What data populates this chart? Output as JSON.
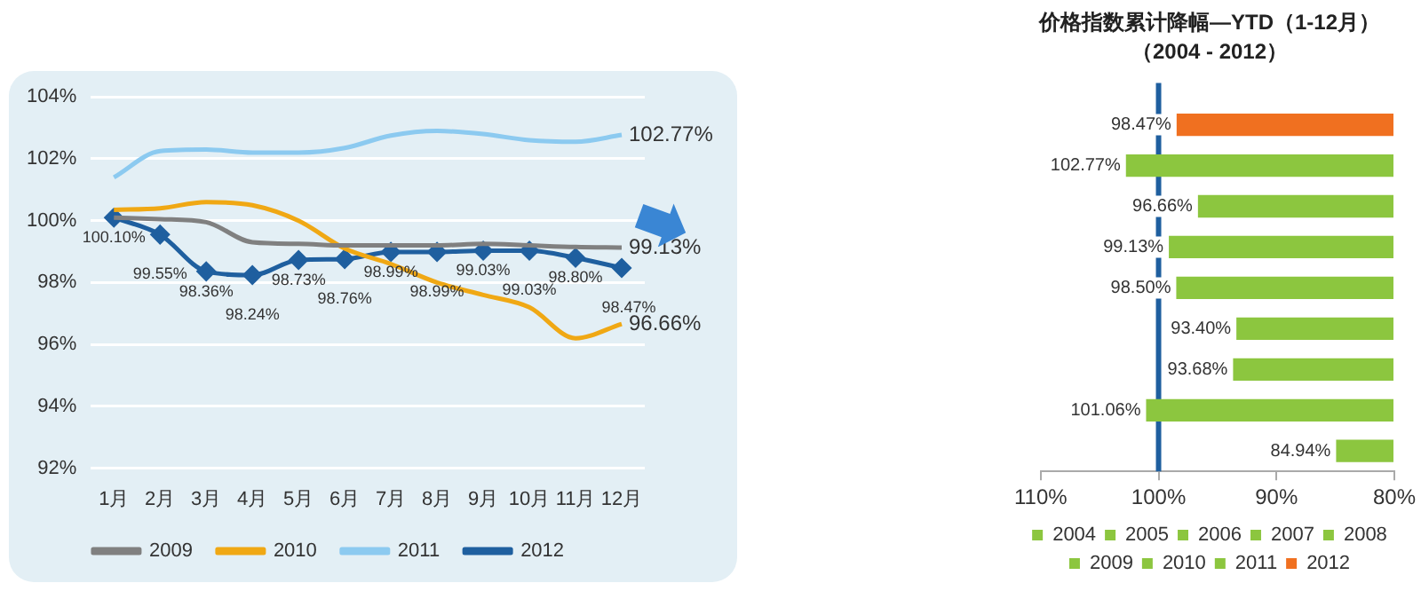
{
  "chart_data": [
    {
      "type": "line",
      "categories": [
        "1月",
        "2月",
        "3月",
        "4月",
        "5月",
        "6月",
        "7月",
        "8月",
        "9月",
        "10月",
        "11月",
        "12月"
      ],
      "ylim": [
        92,
        104
      ],
      "yticks": [
        {
          "value": 92,
          "label": "92%"
        },
        {
          "value": 94,
          "label": "94%"
        },
        {
          "value": 96,
          "label": "96%"
        },
        {
          "value": 98,
          "label": "98%"
        },
        {
          "value": 100,
          "label": "100%"
        },
        {
          "value": 102,
          "label": "102%"
        },
        {
          "value": 104,
          "label": "104%"
        }
      ],
      "grid": "y",
      "legend": "bottom",
      "series": [
        {
          "name": "2009",
          "color": "#808080",
          "values": [
            100.1,
            100.05,
            99.95,
            99.3,
            99.25,
            99.2,
            99.2,
            99.2,
            99.25,
            99.2,
            99.15,
            99.13
          ],
          "value_labels": [
            null,
            null,
            null,
            null,
            null,
            null,
            null,
            null,
            null,
            null,
            null,
            "99.13%"
          ]
        },
        {
          "name": "2010",
          "color": "#f0a814",
          "values": [
            100.35,
            100.4,
            100.6,
            100.5,
            100.0,
            99.1,
            98.6,
            98.0,
            97.6,
            97.2,
            96.2,
            96.66
          ],
          "value_labels": [
            null,
            null,
            null,
            null,
            null,
            null,
            null,
            null,
            null,
            null,
            null,
            "96.66%"
          ]
        },
        {
          "name": "2011",
          "color": "#8ccaf0",
          "values": [
            101.4,
            102.25,
            102.3,
            102.2,
            102.2,
            102.35,
            102.75,
            102.9,
            102.8,
            102.6,
            102.55,
            102.77
          ],
          "value_labels": [
            null,
            null,
            null,
            null,
            null,
            null,
            null,
            null,
            null,
            null,
            null,
            "102.77%"
          ]
        },
        {
          "name": "2012",
          "color": "#1f5f9f",
          "marker": "diamond",
          "values": [
            100.1,
            99.55,
            98.36,
            98.24,
            98.73,
            98.76,
            98.99,
            98.99,
            99.03,
            99.03,
            98.8,
            98.47
          ],
          "value_labels": [
            "100.10%",
            "99.55%",
            "98.36%",
            "98.24%",
            "98.73%",
            "98.76%",
            "98.99%",
            "98.99%",
            "99.03%",
            "99.03%",
            "98.80%",
            "98.47%"
          ]
        }
      ]
    },
    {
      "type": "bar",
      "orientation": "horizontal",
      "title": "价格指数累计降幅—YTD（1-12月）",
      "subtitle": "（2004 - 2012）",
      "categories": [
        null,
        null,
        null,
        null,
        null,
        null,
        null,
        null,
        null
      ],
      "xlim": [
        110,
        80
      ],
      "xticks": [
        {
          "value": 110,
          "label": "110%"
        },
        {
          "value": 100,
          "label": "100%"
        },
        {
          "value": 90,
          "label": "90%"
        },
        {
          "value": 80,
          "label": "80%"
        }
      ],
      "tick_labels": "x",
      "legend": "bottom",
      "ref_lines": [
        {
          "axis": "x",
          "value": 100,
          "color": "#1f5f9f"
        }
      ],
      "series": [
        {
          "name": "2004",
          "color": "#8cc63f",
          "values": [
            null,
            null,
            null,
            null,
            null,
            null,
            null,
            null,
            84.94
          ],
          "value_labels": [
            null,
            null,
            null,
            null,
            null,
            null,
            null,
            null,
            "84.94%"
          ]
        },
        {
          "name": "2005",
          "color": "#8cc63f",
          "values": [
            null,
            null,
            null,
            null,
            null,
            null,
            null,
            101.06,
            null
          ],
          "value_labels": [
            null,
            null,
            null,
            null,
            null,
            null,
            null,
            "101.06%",
            null
          ]
        },
        {
          "name": "2006",
          "color": "#8cc63f",
          "values": [
            null,
            null,
            null,
            null,
            null,
            null,
            93.68,
            null,
            null
          ],
          "value_labels": [
            null,
            null,
            null,
            null,
            null,
            null,
            "93.68%",
            null,
            null
          ]
        },
        {
          "name": "2007",
          "color": "#8cc63f",
          "values": [
            null,
            null,
            null,
            null,
            null,
            93.4,
            null,
            null,
            null
          ],
          "value_labels": [
            null,
            null,
            null,
            null,
            null,
            "93.40%",
            null,
            null,
            null
          ]
        },
        {
          "name": "2008",
          "color": "#8cc63f",
          "values": [
            null,
            null,
            null,
            null,
            98.5,
            null,
            null,
            null,
            null
          ],
          "value_labels": [
            null,
            null,
            null,
            null,
            "98.50%",
            null,
            null,
            null,
            null
          ]
        },
        {
          "name": "2009",
          "color": "#8cc63f",
          "values": [
            null,
            null,
            null,
            99.13,
            null,
            null,
            null,
            null,
            null
          ],
          "value_labels": [
            null,
            null,
            null,
            "99.13%",
            null,
            null,
            null,
            null,
            null
          ]
        },
        {
          "name": "2010",
          "color": "#8cc63f",
          "values": [
            null,
            null,
            96.66,
            null,
            null,
            null,
            null,
            null,
            null
          ],
          "value_labels": [
            null,
            null,
            "96.66%",
            null,
            null,
            null,
            null,
            null,
            null
          ]
        },
        {
          "name": "2011",
          "color": "#8cc63f",
          "values": [
            null,
            102.77,
            null,
            null,
            null,
            null,
            null,
            null,
            null
          ],
          "value_labels": [
            null,
            "102.77%",
            null,
            null,
            null,
            null,
            null,
            null,
            null
          ]
        },
        {
          "name": "2012",
          "color": "#f07020",
          "values": [
            98.47,
            null,
            null,
            null,
            null,
            null,
            null,
            null,
            null
          ],
          "value_labels": [
            "98.47%",
            null,
            null,
            null,
            null,
            null,
            null,
            null,
            null
          ]
        }
      ]
    }
  ]
}
